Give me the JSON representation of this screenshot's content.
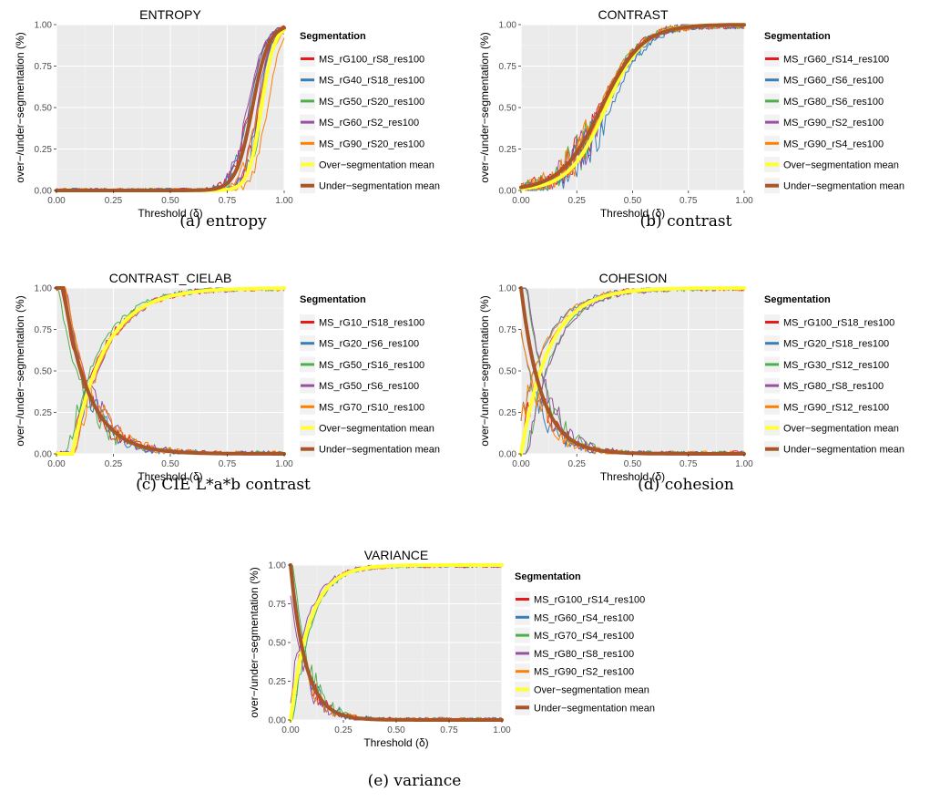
{
  "chart_data": [
    {
      "type": "line",
      "title": "ENTROPY",
      "caption": "(a) entropy",
      "xlabel": "Threshold (δ)",
      "ylabel": "over−/under−segmentation (%)",
      "xlim": [
        0,
        1
      ],
      "ylim": [
        0,
        1
      ],
      "xticks": [
        "0.00",
        "0.25",
        "0.50",
        "0.75",
        "1.00"
      ],
      "yticks": [
        "0.00",
        "0.25",
        "0.50",
        "0.75",
        "1.00"
      ],
      "grid": true,
      "legend_title": "Segmentation",
      "legend_position": "right",
      "legend": [
        "MS_rG100_rS8_res100",
        "MS_rG40_rS18_res100",
        "MS_rG50_rS20_res100",
        "MS_rG60_rS2_res100",
        "MS_rG90_rS20_res100",
        "Over−segmentation mean",
        "Under−segmentation mean"
      ],
      "model": {
        "over": {
          "kind": "logistic",
          "mid": 0.9,
          "k": 35
        },
        "under": {
          "kind": "logistic",
          "mid": 0.86,
          "k": 28
        },
        "start": 0.0,
        "noise": 0.04
      }
    },
    {
      "type": "line",
      "title": "CONTRAST",
      "caption": "(b) contrast",
      "xlabel": "Threshold (δ)",
      "ylabel": "over−/under−segmentation (%)",
      "xlim": [
        0,
        1
      ],
      "ylim": [
        0,
        1
      ],
      "xticks": [
        "0.00",
        "0.25",
        "0.50",
        "0.75",
        "1.00"
      ],
      "yticks": [
        "0.00",
        "0.25",
        "0.50",
        "0.75",
        "1.00"
      ],
      "grid": true,
      "legend_title": "Segmentation",
      "legend_position": "right",
      "legend": [
        "MS_rG60_rS14_res100",
        "MS_rG60_rS6_res100",
        "MS_rG80_rS6_res100",
        "MS_rG90_rS2_res100",
        "MS_rG90_rS4_res100",
        "Over−segmentation mean",
        "Under−segmentation mean"
      ],
      "model": {
        "over": {
          "kind": "logistic",
          "mid": 0.38,
          "k": 12
        },
        "under": {
          "kind": "logistic",
          "mid": 0.36,
          "k": 11
        },
        "start": 0.0,
        "noise": 0.07
      }
    },
    {
      "type": "line",
      "title": "CONTRAST_CIELAB",
      "caption": "(c) CIE L*a*b contrast",
      "xlabel": "Threshold (δ)",
      "ylabel": "over−/under−segmentation (%)",
      "xlim": [
        0,
        1
      ],
      "ylim": [
        0,
        1
      ],
      "xticks": [
        "0.00",
        "0.25",
        "0.50",
        "0.75",
        "1.00"
      ],
      "yticks": [
        "0.00",
        "0.25",
        "0.50",
        "0.75",
        "1.00"
      ],
      "grid": true,
      "legend_title": "Segmentation",
      "legend_position": "right",
      "legend": [
        "MS_rG10_rS18_res100",
        "MS_rG20_rS6_res100",
        "MS_rG50_rS16_res100",
        "MS_rG50_rS6_res100",
        "MS_rG70_rS10_res100",
        "Over−segmentation mean",
        "Under−segmentation mean"
      ],
      "model": {
        "over": {
          "kind": "saturating",
          "offset": 0.07,
          "k": 7
        },
        "under": {
          "kind": "decay",
          "offset": 0.03,
          "k": 9
        },
        "start": 0.0,
        "noise": 0.05
      }
    },
    {
      "type": "line",
      "title": "COHESION",
      "caption": "(d) cohesion",
      "xlabel": "Threshold (δ)",
      "ylabel": "over−/under−segmentation (%)",
      "xlim": [
        0,
        1
      ],
      "ylim": [
        0,
        1
      ],
      "xticks": [
        "0.00",
        "0.25",
        "0.50",
        "0.75",
        "1.00"
      ],
      "yticks": [
        "0.00",
        "0.25",
        "0.50",
        "0.75",
        "1.00"
      ],
      "grid": true,
      "legend_title": "Segmentation",
      "legend_position": "right",
      "legend": [
        "MS_rG100_rS18_res100",
        "MS_rG20_rS18_res100",
        "MS_rG30_rS12_res100",
        "MS_rG80_rS8_res100",
        "MS_rG90_rS12_res100",
        "Over−segmentation mean",
        "Under−segmentation mean"
      ],
      "model": {
        "over": {
          "kind": "saturating",
          "offset": 0.0,
          "k": 8
        },
        "under": {
          "kind": "decay",
          "offset": 0.0,
          "k": 11
        },
        "start": 0.0,
        "noise": 0.05
      }
    },
    {
      "type": "line",
      "title": "VARIANCE",
      "caption": "(e) variance",
      "xlabel": "Threshold (δ)",
      "ylabel": "over−/under−segmentation (%)",
      "xlim": [
        0,
        1
      ],
      "ylim": [
        0,
        1
      ],
      "xticks": [
        "0.00",
        "0.25",
        "0.50",
        "0.75",
        "1.00"
      ],
      "yticks": [
        "0.00",
        "0.25",
        "0.50",
        "0.75",
        "1.00"
      ],
      "grid": true,
      "legend_title": "Segmentation",
      "legend_position": "right",
      "legend": [
        "MS_rG100_rS14_res100",
        "MS_rG60_rS4_res100",
        "MS_rG70_rS4_res100",
        "MS_rG80_rS8_res100",
        "MS_rG90_rS2_res100",
        "Over−segmentation mean",
        "Under−segmentation mean"
      ],
      "model": {
        "over": {
          "kind": "saturating",
          "offset": 0.0,
          "k": 11
        },
        "under": {
          "kind": "decay",
          "offset": 0.0,
          "k": 14
        },
        "start": 0.0,
        "noise": 0.05
      }
    }
  ],
  "colors": {
    "series": [
      "#e41a1c",
      "#377eb8",
      "#4daf4a",
      "#984ea3",
      "#ff7f00"
    ],
    "over_mean": "#ffff33",
    "under_mean": "#a65628",
    "panel_bg": "#ebebeb",
    "grid_major": "#ffffff",
    "grid_minor": "#f5f5f5"
  }
}
